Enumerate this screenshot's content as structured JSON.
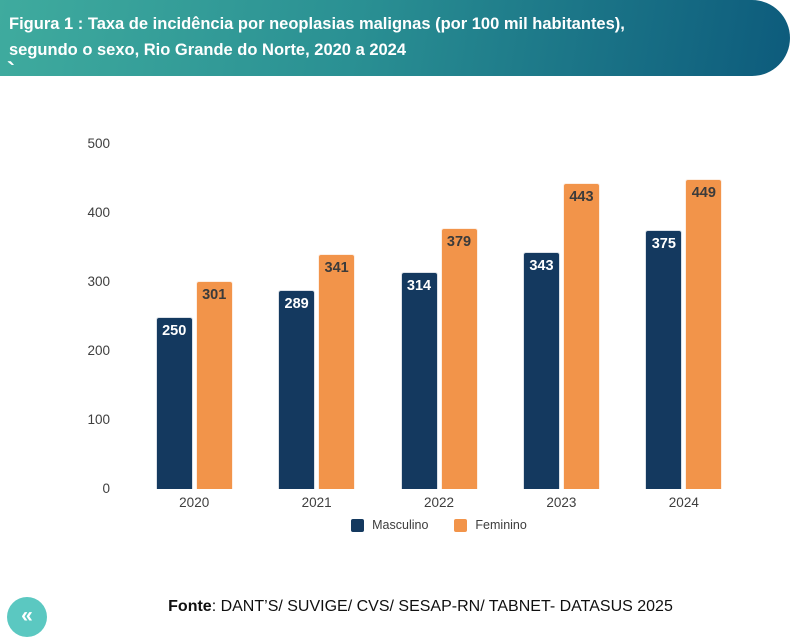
{
  "header": {
    "title_line1": "Figura 1 : Taxa de incidência por neoplasias malignas (por 100 mil habitantes),",
    "title_line2": "segundo o sexo, Rio Grande do Norte, 2020 a 2024",
    "stray_char": "`",
    "gradient_start": "#3fab9e",
    "gradient_end": "#0d5b7c"
  },
  "chart_data": {
    "type": "bar",
    "title": "",
    "xlabel": "",
    "ylabel": "",
    "categories": [
      "2020",
      "2021",
      "2022",
      "2023",
      "2024"
    ],
    "series": [
      {
        "name": "Masculino",
        "color": "#14395f",
        "label_color": "#ffffff",
        "values": [
          250,
          289,
          314,
          343,
          375
        ]
      },
      {
        "name": "Feminino",
        "color": "#f2944a",
        "label_color": "#3b3b3b",
        "values": [
          301,
          341,
          379,
          443,
          449
        ]
      }
    ],
    "ylim": [
      0,
      500
    ],
    "yticks": [
      0,
      100,
      200,
      300,
      400,
      500
    ],
    "grid": false,
    "legend_position": "bottom"
  },
  "footer": {
    "source_label": "Fonte",
    "source_text": ": DANT’S/ SUVIGE/ CVS/ SESAP-RN/ TABNET- DATASUS 2025"
  },
  "nav": {
    "back_button_icon": "«",
    "back_button_color": "#5bc8c1"
  }
}
